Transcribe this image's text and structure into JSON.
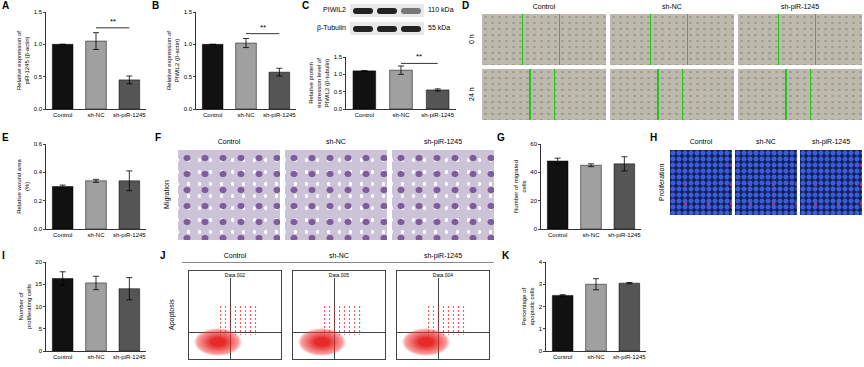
{
  "chart_data": [
    {
      "type": "bar",
      "categories": [
        "Control",
        "sh-NC",
        "sh-piR-1245"
      ],
      "values": [
        1.0,
        1.05,
        0.45
      ],
      "errors": [
        0,
        0.13,
        0.06
      ],
      "colors": [
        "#111111",
        "#a0a0a0",
        "#555555"
      ],
      "y_label": "Relative expression of piR-1245 (β-actin)",
      "ylim": [
        0,
        1.5
      ],
      "yticks": [
        {
          "value": 0,
          "label": "0.0"
        },
        {
          "value": 0.5,
          "label": "0.5"
        },
        {
          "value": 1,
          "label": "1.0"
        },
        {
          "value": 1.5,
          "label": "1.5"
        }
      ],
      "grid": false,
      "annotations": [
        {
          "text": "A"
        },
        {
          "text": "**",
          "between": [
            "sh-NC",
            "sh-piR-1245"
          ]
        }
      ]
    },
    {
      "type": "bar",
      "categories": [
        "Control",
        "sh-NC",
        "sh-piR-1245"
      ],
      "values": [
        1.0,
        1.02,
        0.57
      ],
      "errors": [
        0,
        0.07,
        0.06
      ],
      "colors": [
        "#111111",
        "#a0a0a0",
        "#555555"
      ],
      "y_label": "Relative expression of PIWIL2 (β-actin)",
      "ylim": [
        0,
        1.5
      ],
      "yticks": [
        {
          "value": 0,
          "label": "0.0"
        },
        {
          "value": 0.5,
          "label": "0.5"
        },
        {
          "value": 1,
          "label": "1.0"
        },
        {
          "value": 1.5,
          "label": "1.5"
        }
      ],
      "grid": false,
      "annotations": [
        {
          "text": "B"
        },
        {
          "text": "**",
          "between": [
            "sh-NC",
            "sh-piR-1245"
          ]
        }
      ]
    },
    {
      "type": "bar",
      "categories": [
        "Control",
        "sh-NC",
        "sh-piR-1245"
      ],
      "values": [
        1.1,
        1.12,
        0.55
      ],
      "errors": [
        0,
        0.12,
        0.03
      ],
      "colors": [
        "#111111",
        "#a0a0a0",
        "#555555"
      ],
      "y_label": "Relative protein expression level of PIWIL2 (β-tubulin)",
      "ylim": [
        0,
        1.5
      ],
      "yticks": [
        {
          "value": 0,
          "label": "0.0"
        },
        {
          "value": 0.5,
          "label": "0.5"
        },
        {
          "value": 1,
          "label": "1.0"
        },
        {
          "value": 1.5,
          "label": "1.5"
        }
      ],
      "grid": false,
      "annotations": [
        {
          "text": "C"
        },
        {
          "text": "**",
          "between": [
            "sh-NC",
            "sh-piR-1245"
          ]
        }
      ],
      "blot": [
        {
          "protein": "PIWIL2",
          "size": "110 kDa"
        },
        {
          "protein": "β-Tubulin",
          "size": "55 kDa"
        }
      ]
    },
    {
      "type": "bar",
      "categories": [
        "Control",
        "sh-NC",
        "sh-piR-1245"
      ],
      "values": [
        0.3,
        0.34,
        0.34
      ],
      "errors": [
        0.01,
        0.01,
        0.07
      ],
      "colors": [
        "#111111",
        "#a0a0a0",
        "#555555"
      ],
      "y_label": "Relative wound area (%)",
      "ylim": [
        0,
        0.6
      ],
      "yticks": [
        {
          "value": 0,
          "label": "0.0"
        },
        {
          "value": 0.2,
          "label": "0.2"
        },
        {
          "value": 0.4,
          "label": "0.4"
        },
        {
          "value": 0.6,
          "label": "0.6"
        }
      ],
      "grid": false,
      "annotations": [
        {
          "text": "E"
        }
      ]
    },
    {
      "type": "bar",
      "categories": [
        "Control",
        "sh-NC",
        "sh-piR-1245"
      ],
      "values": [
        48,
        45,
        46
      ],
      "errors": [
        2,
        1,
        5
      ],
      "colors": [
        "#111111",
        "#a0a0a0",
        "#555555"
      ],
      "y_label": "Number of migrated cells",
      "ylim": [
        0,
        60
      ],
      "yticks": [
        0,
        20,
        40,
        60
      ],
      "grid": false,
      "annotations": [
        {
          "text": "G"
        }
      ]
    },
    {
      "type": "bar",
      "categories": [
        "Control",
        "sh-NC",
        "sh-piR-1245"
      ],
      "values": [
        16.3,
        15.3,
        14
      ],
      "errors": [
        1.5,
        1.5,
        2.5
      ],
      "colors": [
        "#111111",
        "#a0a0a0",
        "#555555"
      ],
      "y_label": "Number of proliferating cells",
      "ylim": [
        0,
        20
      ],
      "yticks": [
        0,
        5,
        10,
        15,
        20
      ],
      "grid": false,
      "annotations": [
        {
          "text": "I"
        }
      ]
    },
    {
      "type": "bar",
      "categories": [
        "Control",
        "sh-NC",
        "sh-piR-1245"
      ],
      "values": [
        2.5,
        3.0,
        3.05
      ],
      "errors": [
        0.03,
        0.25,
        0.03
      ],
      "colors": [
        "#111111",
        "#a0a0a0",
        "#555555"
      ],
      "y_label": "Percentage of apoptotic cells",
      "ylim": [
        0,
        4
      ],
      "yticks": [
        0,
        1,
        2,
        3,
        4
      ],
      "grid": false,
      "annotations": [
        {
          "text": "K"
        }
      ]
    }
  ],
  "image_panels": [
    {
      "panel": "D",
      "columns": [
        "Control",
        "sh-NC",
        "sh-piR-1245"
      ],
      "rows": [
        "0 h",
        "24 h"
      ]
    },
    {
      "panel": "F",
      "row_label": "Migration",
      "columns": [
        "Control",
        "sh-NC",
        "sh-piR-1245"
      ]
    },
    {
      "panel": "H",
      "row_label": "Proliferation",
      "columns": [
        "Control",
        "sh-NC",
        "sh-piR-1245"
      ]
    },
    {
      "panel": "J",
      "row_label": "Apoptosis",
      "columns": [
        "Control",
        "sh-NC",
        "sh-piR-1245"
      ],
      "plot_labels": [
        "Data.002",
        "Data.005",
        "Data.004"
      ]
    }
  ]
}
